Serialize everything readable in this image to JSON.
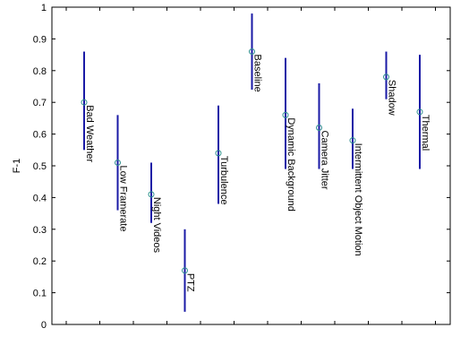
{
  "chart_data": {
    "type": "error-bar",
    "title": "",
    "xlabel": "",
    "ylabel": "F-1",
    "ylim": [
      0,
      1
    ],
    "yticks": [
      "0",
      "0.1",
      "0.2",
      "0.3",
      "0.4",
      "0.5",
      "0.6",
      "0.7",
      "0.8",
      "0.9",
      "1"
    ],
    "grid": false,
    "categories": [
      "Bad Weather",
      "Low Framerate",
      "Night Videos",
      "PTZ",
      "Turbulence",
      "Baseline",
      "Dynamic Background",
      "Camera Jitter",
      "Intermittent Object Motion",
      "Shadow",
      "Thermal"
    ],
    "mean": [
      0.7,
      0.51,
      0.41,
      0.17,
      0.54,
      0.86,
      0.66,
      0.62,
      0.58,
      0.78,
      0.67
    ],
    "lower": [
      0.55,
      0.36,
      0.32,
      0.04,
      0.38,
      0.74,
      0.49,
      0.49,
      0.49,
      0.71,
      0.49
    ],
    "upper": [
      0.86,
      0.66,
      0.51,
      0.3,
      0.69,
      0.98,
      0.84,
      0.76,
      0.68,
      0.86,
      0.85
    ],
    "colors": {
      "bar": "#1a1aa6",
      "marker": "#2f8f8f",
      "axis": "#000000"
    }
  }
}
